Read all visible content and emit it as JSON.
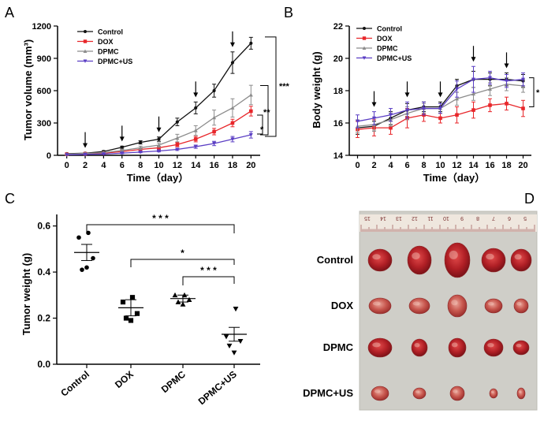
{
  "panels": {
    "a": "A",
    "b": "B",
    "c": "C",
    "d": "D"
  },
  "colors": {
    "Control": "#111111",
    "DOX": "#e8262a",
    "DPMC": "#8c8c8c",
    "DPMC+US": "#5b3fc4"
  },
  "chart_data": [
    {
      "id": "A",
      "type": "line",
      "title": "",
      "xlabel": "Time（day）",
      "ylabel": "Tumor volume (mm³)",
      "xlim": [
        -1,
        21
      ],
      "ylim": [
        0,
        1200
      ],
      "xticks": [
        0,
        2,
        4,
        6,
        8,
        10,
        12,
        14,
        16,
        18,
        20
      ],
      "yticks": [
        0,
        300,
        600,
        900,
        1200
      ],
      "x": [
        0,
        2,
        4,
        6,
        8,
        10,
        12,
        14,
        16,
        18,
        20
      ],
      "series": [
        {
          "name": "Control",
          "values": [
            15,
            20,
            35,
            75,
            120,
            150,
            310,
            440,
            600,
            860,
            1040
          ],
          "errors": [
            0,
            5,
            8,
            10,
            15,
            20,
            35,
            55,
            60,
            100,
            55
          ]
        },
        {
          "name": "DOX",
          "values": [
            10,
            15,
            20,
            35,
            55,
            70,
            100,
            150,
            220,
            300,
            410
          ],
          "errors": [
            0,
            3,
            5,
            8,
            10,
            12,
            20,
            25,
            30,
            35,
            45
          ]
        },
        {
          "name": "DPMC",
          "values": [
            12,
            18,
            25,
            45,
            70,
            95,
            160,
            230,
            350,
            440,
            560
          ],
          "errors": [
            0,
            4,
            6,
            10,
            15,
            20,
            35,
            45,
            70,
            85,
            90
          ]
        },
        {
          "name": "DPMC+US",
          "values": [
            5,
            8,
            12,
            20,
            30,
            40,
            55,
            80,
            110,
            150,
            190
          ],
          "errors": [
            0,
            2,
            3,
            5,
            6,
            8,
            10,
            15,
            20,
            25,
            30
          ]
        }
      ],
      "arrows_at_day": [
        2,
        6,
        10,
        14,
        18
      ],
      "significance": [
        "***",
        "**",
        "*"
      ]
    },
    {
      "id": "B",
      "type": "line",
      "title": "",
      "xlabel": "Time（day）",
      "ylabel": "Body weight (g)",
      "xlim": [
        -1,
        21
      ],
      "ylim": [
        14,
        22
      ],
      "xticks": [
        0,
        2,
        4,
        6,
        8,
        10,
        12,
        14,
        16,
        18,
        20
      ],
      "yticks": [
        14,
        16,
        18,
        20,
        22
      ],
      "x": [
        0,
        2,
        4,
        6,
        8,
        10,
        12,
        14,
        16,
        18,
        20
      ],
      "series": [
        {
          "name": "Control",
          "values": [
            15.7,
            15.8,
            16.3,
            16.8,
            17.0,
            17.0,
            18.3,
            18.7,
            18.7,
            18.7,
            18.6
          ],
          "errors": [
            0.4,
            0.3,
            0.4,
            0.4,
            0.3,
            0.3,
            0.4,
            0.5,
            0.4,
            0.4,
            0.4
          ]
        },
        {
          "name": "DOX",
          "values": [
            15.6,
            15.7,
            15.7,
            16.3,
            16.5,
            16.3,
            16.5,
            16.8,
            17.1,
            17.2,
            16.9
          ],
          "errors": [
            0.5,
            0.5,
            0.4,
            0.6,
            0.4,
            0.3,
            0.5,
            0.5,
            0.4,
            0.4,
            0.5
          ]
        },
        {
          "name": "DPMC",
          "values": [
            15.8,
            15.9,
            16.2,
            16.6,
            16.9,
            16.9,
            17.5,
            17.8,
            18.1,
            18.4,
            18.3
          ],
          "errors": [
            0.4,
            0.4,
            0.4,
            0.4,
            0.3,
            0.3,
            0.4,
            0.4,
            0.4,
            0.4,
            0.4
          ]
        },
        {
          "name": "DPMC+US",
          "values": [
            16.1,
            16.3,
            16.5,
            16.8,
            16.9,
            16.9,
            18.1,
            18.7,
            18.8,
            18.6,
            18.7
          ],
          "errors": [
            0.4,
            0.4,
            0.4,
            0.5,
            0.4,
            0.3,
            0.5,
            0.8,
            0.4,
            0.4,
            0.4
          ]
        }
      ],
      "arrows_at_day": [
        2,
        6,
        10,
        14,
        18
      ],
      "significance": [
        "*"
      ]
    },
    {
      "id": "C",
      "type": "scatter",
      "title": "",
      "xlabel": "",
      "ylabel": "Tumor weight (g)",
      "ylim": [
        0,
        0.65
      ],
      "yticks": [
        0.0,
        0.2,
        0.4,
        0.6
      ],
      "yticklabels": [
        "0.0",
        "0.2",
        "0.4",
        "0.6"
      ],
      "categories": [
        "Control",
        "DOX",
        "DPMC",
        "DPMC+US"
      ],
      "points": [
        [
          0.57,
          0.55,
          0.46,
          0.41,
          0.42
        ],
        [
          0.29,
          0.27,
          0.22,
          0.2,
          0.19
        ],
        [
          0.3,
          0.3,
          0.28,
          0.27,
          0.26
        ],
        [
          0.24,
          0.12,
          0.1,
          0.08,
          0.05
        ]
      ],
      "means": [
        0.485,
        0.245,
        0.285,
        0.13
      ],
      "sem": [
        0.035,
        0.035,
        0.015,
        0.03
      ],
      "markers": [
        "circle",
        "square",
        "triangle-up",
        "triangle-down"
      ],
      "significance": [
        {
          "from": "Control",
          "to": "DPMC+US",
          "label": "* * *"
        },
        {
          "from": "DOX",
          "to": "DPMC+US",
          "label": "*"
        },
        {
          "from": "DPMC",
          "to": "DPMC+US",
          "label": "* * *"
        }
      ]
    }
  ],
  "photo": {
    "rows": [
      "Control",
      "DOX",
      "DPMC",
      "DPMC+US"
    ],
    "ruler_numbers": [
      "15",
      "14",
      "13",
      "12",
      "11",
      "10",
      "9",
      "8",
      "7",
      "6",
      "5"
    ]
  }
}
